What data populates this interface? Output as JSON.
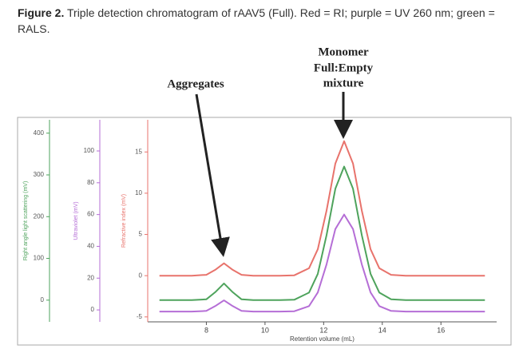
{
  "chart_data": {
    "type": "line",
    "caption_label": "Figure 2.",
    "caption": "Triple detection chromatogram of rAAV5 (Full). Red = RI; purple = UV 260 nm; green = RALS.",
    "annotations": [
      "Aggregates",
      "Monomer",
      "Full:Empty",
      "mixture"
    ],
    "x_label": "Retention volume (mL)",
    "xlim": [
      6,
      17.9
    ],
    "xticks": [
      8,
      10,
      12,
      14,
      16
    ],
    "x": [
      6.4,
      7,
      7.5,
      8,
      8.3,
      8.6,
      8.9,
      9.2,
      9.6,
      10,
      10.5,
      11,
      11.5,
      11.8,
      12.1,
      12.4,
      12.7,
      13,
      13.3,
      13.6,
      13.9,
      14.3,
      14.8,
      15.5,
      16.5,
      17.5
    ],
    "series": [
      {
        "axis_label": "Refractive index (mV)",
        "color": "#e8736c",
        "ylim": [
          -5.6,
          18.9
        ],
        "yticks": [
          -5,
          0,
          5,
          10,
          15
        ],
        "values": [
          0,
          0,
          0,
          0.1,
          0.7,
          1.5,
          0.7,
          0.1,
          0,
          0,
          0,
          0.05,
          0.9,
          3.2,
          7.9,
          13.6,
          16.3,
          13.6,
          7.9,
          3.2,
          0.9,
          0.1,
          0,
          0,
          0,
          0
        ]
      },
      {
        "axis_label": "Right angle light scattering (mV)",
        "color": "#4ea35c",
        "ylim": [
          -52,
          432
        ],
        "yticks": [
          0,
          100,
          200,
          300,
          400
        ],
        "values": [
          0,
          0,
          0,
          2,
          19,
          40,
          19,
          2,
          0,
          0,
          0,
          1,
          18,
          63,
          156,
          267,
          320,
          267,
          156,
          63,
          18,
          2,
          0,
          0,
          0,
          0
        ]
      },
      {
        "axis_label": "Ultraviolet (mV)",
        "color": "#b56ed6",
        "ylim": [
          -7.5,
          119.6
        ],
        "yticks": [
          0,
          20,
          40,
          60,
          80,
          100
        ],
        "values": [
          -1,
          -1,
          -1,
          -0.6,
          2.4,
          6,
          2.4,
          -0.6,
          -1,
          -1,
          -1,
          -0.8,
          2.4,
          11,
          28.7,
          50.9,
          60,
          50.9,
          28.7,
          11,
          2.4,
          -0.6,
          -1,
          -1,
          -1,
          -1
        ]
      }
    ]
  }
}
